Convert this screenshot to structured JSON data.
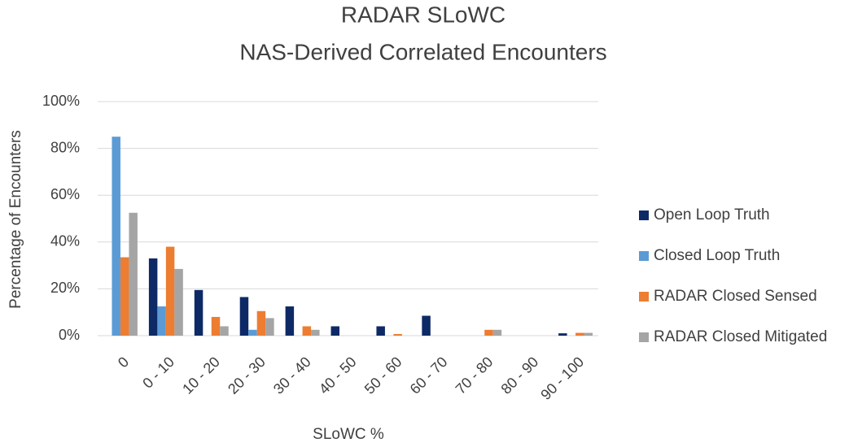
{
  "chart_data": {
    "type": "bar",
    "title": "RADAR SLoWC",
    "subtitle": "NAS-Derived Correlated Encounters",
    "x_label": "SLoWC %",
    "y_label": "Percentage of Encounters",
    "categories": [
      "0",
      "0 - 10",
      "10 - 20",
      "20 - 30",
      "30 - 40",
      "40 - 50",
      "50 - 60",
      "60 - 70",
      "70 - 80",
      "80 - 90",
      "90 - 100"
    ],
    "series": [
      {
        "name": "Open Loop Truth",
        "color": "#0e2a66",
        "values": [
          0,
          33,
          19.5,
          16.5,
          12.5,
          4,
          4,
          8.5,
          0,
          0,
          1
        ]
      },
      {
        "name": "Closed Loop Truth",
        "color": "#5b9bd5",
        "values": [
          85,
          12.5,
          0,
          2.5,
          0,
          0,
          0,
          0,
          0,
          0,
          0
        ]
      },
      {
        "name": "RADAR Closed Sensed",
        "color": "#ed7d31",
        "values": [
          33.5,
          38,
          8,
          10.5,
          4,
          0,
          0.7,
          0,
          2.5,
          0,
          1.2
        ]
      },
      {
        "name": "RADAR Closed Mitigated",
        "color": "#a5a5a5",
        "values": [
          52.5,
          28.5,
          4,
          7.5,
          2.5,
          0,
          0,
          0,
          2.5,
          0,
          1.2
        ]
      }
    ],
    "ylim": [
      0,
      100
    ],
    "yticks": [
      {
        "value": 0,
        "label": "0%"
      },
      {
        "value": 20,
        "label": "20%"
      },
      {
        "value": 40,
        "label": "40%"
      },
      {
        "value": 60,
        "label": "60%"
      },
      {
        "value": 80,
        "label": "80%"
      },
      {
        "value": 100,
        "label": "100%"
      }
    ],
    "grid": true,
    "legend": "right"
  }
}
